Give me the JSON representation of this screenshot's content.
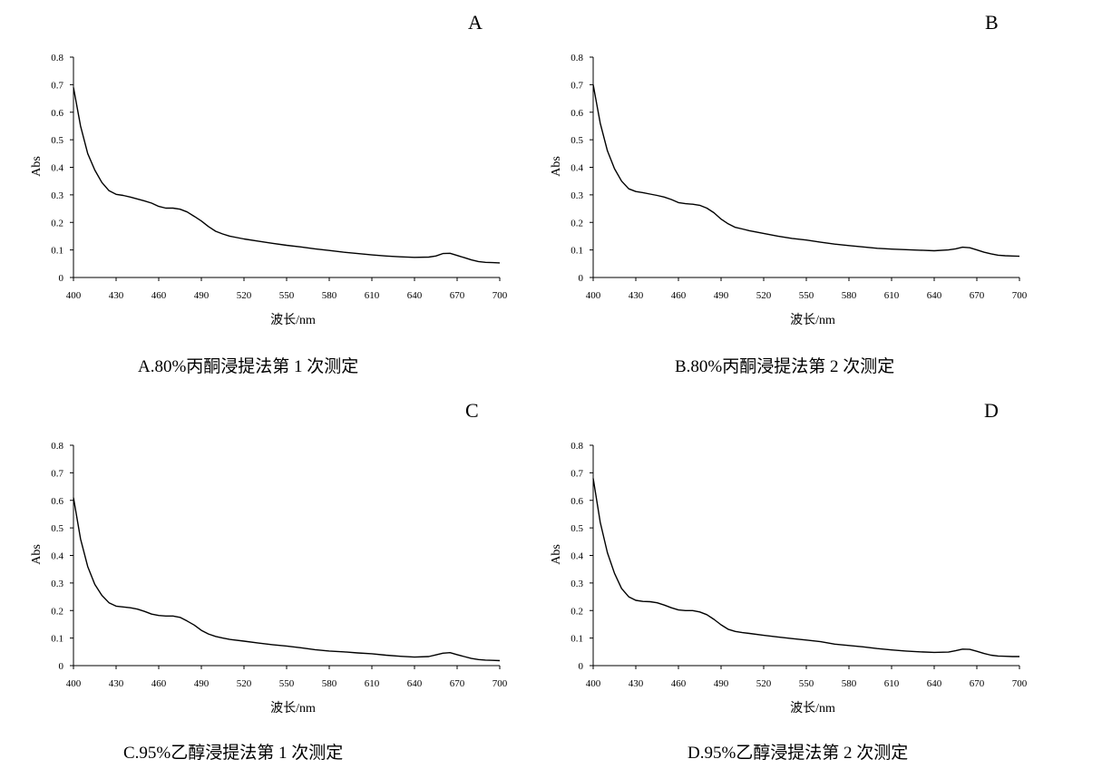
{
  "chart_data": [
    {
      "type": "line",
      "panel_letter": "A",
      "caption": "A.80%丙酮浸提法第 1 次测定",
      "xlabel": "波长/nm",
      "ylabel": "Abs",
      "xlim": [
        400,
        700
      ],
      "ylim": [
        0,
        0.8
      ],
      "x_ticks": [
        "400",
        "430",
        "460",
        "490",
        "520",
        "550",
        "580",
        "610",
        "640",
        "670",
        "700"
      ],
      "y_ticks": [
        "0",
        "0.1",
        "0.2",
        "0.3",
        "0.4",
        "0.5",
        "0.6",
        "0.7",
        "0.8"
      ],
      "grid": false,
      "color": "#000000",
      "series": [
        {
          "x": [
            400,
            405,
            410,
            415,
            420,
            425,
            430,
            435,
            440,
            445,
            450,
            455,
            460,
            465,
            470,
            475,
            480,
            485,
            490,
            495,
            500,
            505,
            510,
            520,
            530,
            540,
            550,
            560,
            570,
            580,
            590,
            600,
            610,
            620,
            630,
            640,
            650,
            655,
            660,
            665,
            670,
            675,
            680,
            685,
            690,
            695,
            700
          ],
          "y": [
            0.69,
            0.55,
            0.45,
            0.39,
            0.345,
            0.315,
            0.302,
            0.298,
            0.292,
            0.285,
            0.278,
            0.27,
            0.258,
            0.252,
            0.252,
            0.248,
            0.238,
            0.222,
            0.205,
            0.185,
            0.168,
            0.158,
            0.15,
            0.14,
            0.132,
            0.124,
            0.117,
            0.111,
            0.104,
            0.098,
            0.092,
            0.087,
            0.082,
            0.078,
            0.075,
            0.073,
            0.074,
            0.078,
            0.087,
            0.088,
            0.08,
            0.072,
            0.064,
            0.058,
            0.055,
            0.054,
            0.053
          ]
        }
      ]
    },
    {
      "type": "line",
      "panel_letter": "B",
      "caption": "B.80%丙酮浸提法第 2 次测定",
      "xlabel": "波长/nm",
      "ylabel": "Abs",
      "xlim": [
        400,
        700
      ],
      "ylim": [
        0,
        0.8
      ],
      "x_ticks": [
        "400",
        "430",
        "460",
        "490",
        "520",
        "550",
        "580",
        "610",
        "640",
        "670",
        "700"
      ],
      "y_ticks": [
        "0",
        "0.1",
        "0.2",
        "0.3",
        "0.4",
        "0.5",
        "0.6",
        "0.7",
        "0.8"
      ],
      "grid": false,
      "color": "#000000",
      "series": [
        {
          "x": [
            400,
            405,
            410,
            415,
            420,
            425,
            430,
            435,
            440,
            445,
            450,
            455,
            460,
            465,
            470,
            475,
            480,
            485,
            490,
            495,
            500,
            505,
            510,
            520,
            530,
            540,
            550,
            560,
            570,
            580,
            590,
            600,
            610,
            620,
            630,
            640,
            650,
            655,
            660,
            665,
            670,
            675,
            680,
            685,
            690,
            695,
            700
          ],
          "y": [
            0.7,
            0.56,
            0.46,
            0.395,
            0.35,
            0.322,
            0.312,
            0.308,
            0.303,
            0.298,
            0.292,
            0.283,
            0.272,
            0.268,
            0.266,
            0.262,
            0.252,
            0.235,
            0.212,
            0.195,
            0.182,
            0.176,
            0.17,
            0.16,
            0.15,
            0.142,
            0.136,
            0.128,
            0.121,
            0.116,
            0.111,
            0.106,
            0.103,
            0.101,
            0.099,
            0.097,
            0.1,
            0.104,
            0.11,
            0.108,
            0.1,
            0.092,
            0.086,
            0.081,
            0.079,
            0.078,
            0.077
          ]
        }
      ]
    },
    {
      "type": "line",
      "panel_letter": "C",
      "caption": "C.95%乙醇浸提法第 1 次测定",
      "xlabel": "波长/nm",
      "ylabel": "Abs",
      "xlim": [
        400,
        700
      ],
      "ylim": [
        0,
        0.8
      ],
      "x_ticks": [
        "400",
        "430",
        "460",
        "490",
        "520",
        "550",
        "580",
        "610",
        "640",
        "670",
        "700"
      ],
      "y_ticks": [
        "0",
        "0.1",
        "0.2",
        "0.3",
        "0.4",
        "0.5",
        "0.6",
        "0.7",
        "0.8"
      ],
      "grid": false,
      "color": "#000000",
      "series": [
        {
          "x": [
            400,
            405,
            410,
            415,
            420,
            425,
            430,
            435,
            440,
            445,
            450,
            455,
            460,
            465,
            470,
            475,
            480,
            485,
            490,
            495,
            500,
            505,
            510,
            520,
            530,
            540,
            550,
            560,
            570,
            580,
            590,
            600,
            610,
            620,
            630,
            640,
            650,
            655,
            660,
            665,
            670,
            675,
            680,
            685,
            690,
            695,
            700
          ],
          "y": [
            0.61,
            0.46,
            0.36,
            0.295,
            0.255,
            0.228,
            0.216,
            0.213,
            0.21,
            0.205,
            0.197,
            0.187,
            0.182,
            0.18,
            0.18,
            0.175,
            0.162,
            0.147,
            0.128,
            0.115,
            0.106,
            0.1,
            0.095,
            0.089,
            0.082,
            0.076,
            0.071,
            0.065,
            0.058,
            0.053,
            0.05,
            0.046,
            0.043,
            0.038,
            0.034,
            0.031,
            0.033,
            0.039,
            0.045,
            0.047,
            0.04,
            0.033,
            0.026,
            0.022,
            0.02,
            0.019,
            0.018
          ]
        }
      ]
    },
    {
      "type": "line",
      "panel_letter": "D",
      "caption": "D.95%乙醇浸提法第 2 次测定",
      "xlabel": "波长/nm",
      "ylabel": "Abs",
      "xlim": [
        400,
        700
      ],
      "ylim": [
        0,
        0.8
      ],
      "x_ticks": [
        "400",
        "430",
        "460",
        "490",
        "520",
        "550",
        "580",
        "610",
        "640",
        "670",
        "700"
      ],
      "y_ticks": [
        "0",
        "0.1",
        "0.2",
        "0.3",
        "0.4",
        "0.5",
        "0.6",
        "0.7",
        "0.8"
      ],
      "grid": false,
      "color": "#000000",
      "series": [
        {
          "x": [
            400,
            405,
            410,
            415,
            420,
            425,
            430,
            435,
            440,
            445,
            450,
            455,
            460,
            465,
            470,
            475,
            480,
            485,
            490,
            495,
            500,
            505,
            510,
            520,
            530,
            540,
            550,
            560,
            570,
            580,
            590,
            600,
            610,
            620,
            630,
            640,
            650,
            655,
            660,
            665,
            670,
            675,
            680,
            685,
            690,
            695,
            700
          ],
          "y": [
            0.68,
            0.52,
            0.41,
            0.335,
            0.28,
            0.25,
            0.237,
            0.233,
            0.232,
            0.228,
            0.22,
            0.21,
            0.202,
            0.2,
            0.2,
            0.195,
            0.185,
            0.168,
            0.148,
            0.132,
            0.124,
            0.12,
            0.117,
            0.11,
            0.104,
            0.098,
            0.093,
            0.087,
            0.078,
            0.073,
            0.068,
            0.062,
            0.057,
            0.053,
            0.05,
            0.048,
            0.049,
            0.054,
            0.06,
            0.059,
            0.052,
            0.044,
            0.038,
            0.035,
            0.034,
            0.033,
            0.033
          ]
        }
      ]
    }
  ]
}
